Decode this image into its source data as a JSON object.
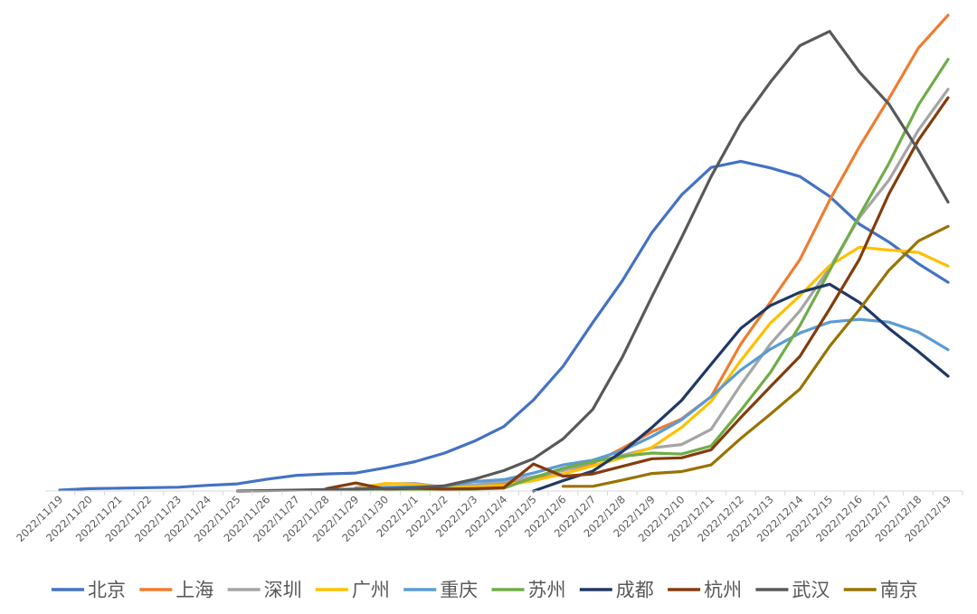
{
  "chart_data": {
    "type": "line",
    "title": "",
    "xlabel": "",
    "ylabel": "",
    "ylim": [
      0,
      100
    ],
    "grid": false,
    "legend_position": "bottom",
    "categories": [
      "2022/11/19",
      "2022/11/20",
      "2022/11/21",
      "2022/11/22",
      "2022/11/23",
      "2022/11/24",
      "2022/11/25",
      "2022/11/26",
      "2022/11/27",
      "2022/11/28",
      "2022/11/29",
      "2022/11/30",
      "2022/12/1",
      "2022/12/2",
      "2022/12/3",
      "2022/12/4",
      "2022/12/5",
      "2022/12/6",
      "2022/12/7",
      "2022/12/8",
      "2022/12/9",
      "2022/12/10",
      "2022/12/11",
      "2022/12/12",
      "2022/12/13",
      "2022/12/14",
      "2022/12/15",
      "2022/12/16",
      "2022/12/17",
      "2022/12/18",
      "2022/12/19"
    ],
    "series": [
      {
        "name": "北京",
        "color": "#4472C4",
        "values": [
          0.2,
          0.5,
          0.6,
          0.7,
          0.8,
          1.2,
          1.5,
          2.5,
          3.3,
          3.6,
          3.8,
          4.9,
          6.2,
          8,
          10.5,
          13.6,
          19.2,
          26.3,
          35.5,
          44.3,
          54.5,
          62.4,
          68.2,
          69.5,
          68.1,
          66.3,
          62.1,
          56.3,
          52.5,
          47.9,
          44
        ]
      },
      {
        "name": "上海",
        "color": "#ED7D31",
        "values": [
          null,
          null,
          null,
          null,
          null,
          null,
          null,
          null,
          null,
          null,
          0.5,
          0.6,
          0.8,
          0.8,
          1.2,
          1.5,
          2.6,
          3.5,
          5.8,
          9,
          12.5,
          15.2,
          19.9,
          31,
          39.8,
          48.8,
          61.3,
          72.5,
          82.7,
          93.4,
          100.3
        ]
      },
      {
        "name": "深圳",
        "color": "#A5A5A5",
        "values": [
          null,
          null,
          null,
          null,
          null,
          null,
          null,
          null,
          null,
          null,
          0.7,
          1.5,
          1.6,
          0.8,
          1.3,
          2,
          3,
          4.3,
          6.1,
          7.5,
          9.1,
          9.8,
          13,
          22.4,
          31,
          38,
          47,
          57.6,
          65.5,
          76.1,
          84.7
        ]
      },
      {
        "name": "广州",
        "color": "#FFC000",
        "values": [
          null,
          null,
          null,
          null,
          null,
          null,
          null,
          null,
          null,
          null,
          0.4,
          1.6,
          1.4,
          0.7,
          0.9,
          1.2,
          2.2,
          3.6,
          5.3,
          7,
          9.2,
          13.4,
          18.9,
          27.5,
          35.4,
          41.2,
          47.5,
          51.4,
          50.8,
          50.3,
          47.4
        ]
      },
      {
        "name": "重庆",
        "color": "#5B9BD5",
        "values": [
          null,
          null,
          null,
          null,
          null,
          null,
          null,
          null,
          null,
          null,
          0.4,
          0.8,
          0.9,
          1,
          2,
          2.4,
          3.8,
          5.5,
          6.5,
          8.5,
          11.5,
          15,
          19.9,
          25.5,
          29.9,
          33.3,
          35.6,
          36.2,
          35.6,
          33.5,
          29.8
        ]
      },
      {
        "name": "苏州",
        "color": "#70AD47",
        "values": [
          null,
          null,
          null,
          null,
          null,
          null,
          null,
          null,
          null,
          null,
          0.2,
          0.3,
          0.3,
          0.3,
          0.4,
          0.6,
          2.8,
          4.8,
          6.2,
          7.3,
          8,
          7.8,
          9.5,
          17,
          25,
          34.9,
          46.5,
          58,
          69,
          81.4,
          91
        ]
      },
      {
        "name": "成都",
        "color": "#203864",
        "values": [
          null,
          null,
          null,
          null,
          null,
          null,
          null,
          null,
          null,
          null,
          null,
          null,
          null,
          null,
          null,
          null,
          0,
          2.2,
          4.2,
          8.3,
          13.4,
          19.1,
          26.7,
          34.3,
          39.1,
          41.9,
          43.6,
          39.8,
          34.3,
          29.4,
          24.2
        ]
      },
      {
        "name": "杭州",
        "color": "#843C0C",
        "values": [
          null,
          null,
          null,
          null,
          null,
          null,
          null,
          null,
          null,
          0.5,
          1.7,
          0.4,
          0.6,
          0.4,
          0.5,
          0.7,
          5.7,
          3.1,
          3.6,
          5.2,
          6.8,
          7,
          8.7,
          15.5,
          22,
          28.4,
          38.4,
          48.8,
          62.6,
          74,
          82.9
        ]
      },
      {
        "name": "武汉",
        "color": "#595959",
        "values": [
          null,
          null,
          null,
          null,
          null,
          null,
          0,
          0.1,
          0.2,
          0.3,
          0.4,
          0.5,
          0.7,
          1.1,
          2.5,
          4.3,
          6.8,
          11,
          17.2,
          28.2,
          41,
          53.4,
          66.3,
          77.6,
          86.2,
          93.9,
          96.9,
          88.4,
          81.6,
          71.8,
          60.9
        ]
      },
      {
        "name": "南京",
        "color": "#997300",
        "values": [
          null,
          null,
          null,
          null,
          null,
          null,
          null,
          null,
          null,
          null,
          null,
          null,
          null,
          null,
          null,
          null,
          null,
          1,
          1,
          2.3,
          3.7,
          4.1,
          5.5,
          11.1,
          16.2,
          21.5,
          30.5,
          38.2,
          46.5,
          52.7,
          55.8
        ]
      }
    ]
  }
}
